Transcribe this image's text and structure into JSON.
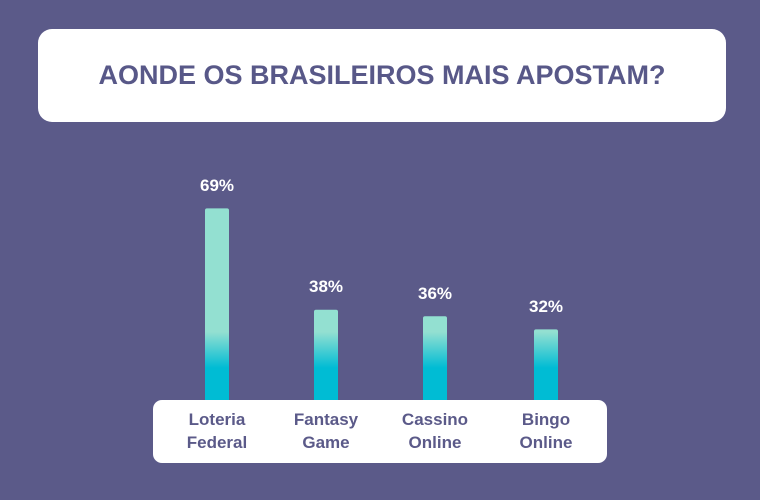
{
  "chart_data": {
    "type": "bar",
    "title": "AONDE OS BRASILEIROS MAIS APOSTAM?",
    "categories": [
      "Loteria Federal",
      "Fantasy Game",
      "Cassino Online",
      "Bingo Online"
    ],
    "values": [
      69,
      38,
      36,
      32
    ],
    "value_labels": [
      "69%",
      "38%",
      "36%",
      "32%"
    ],
    "colors": [
      "#93e0d1",
      "#00bcd4"
    ]
  }
}
